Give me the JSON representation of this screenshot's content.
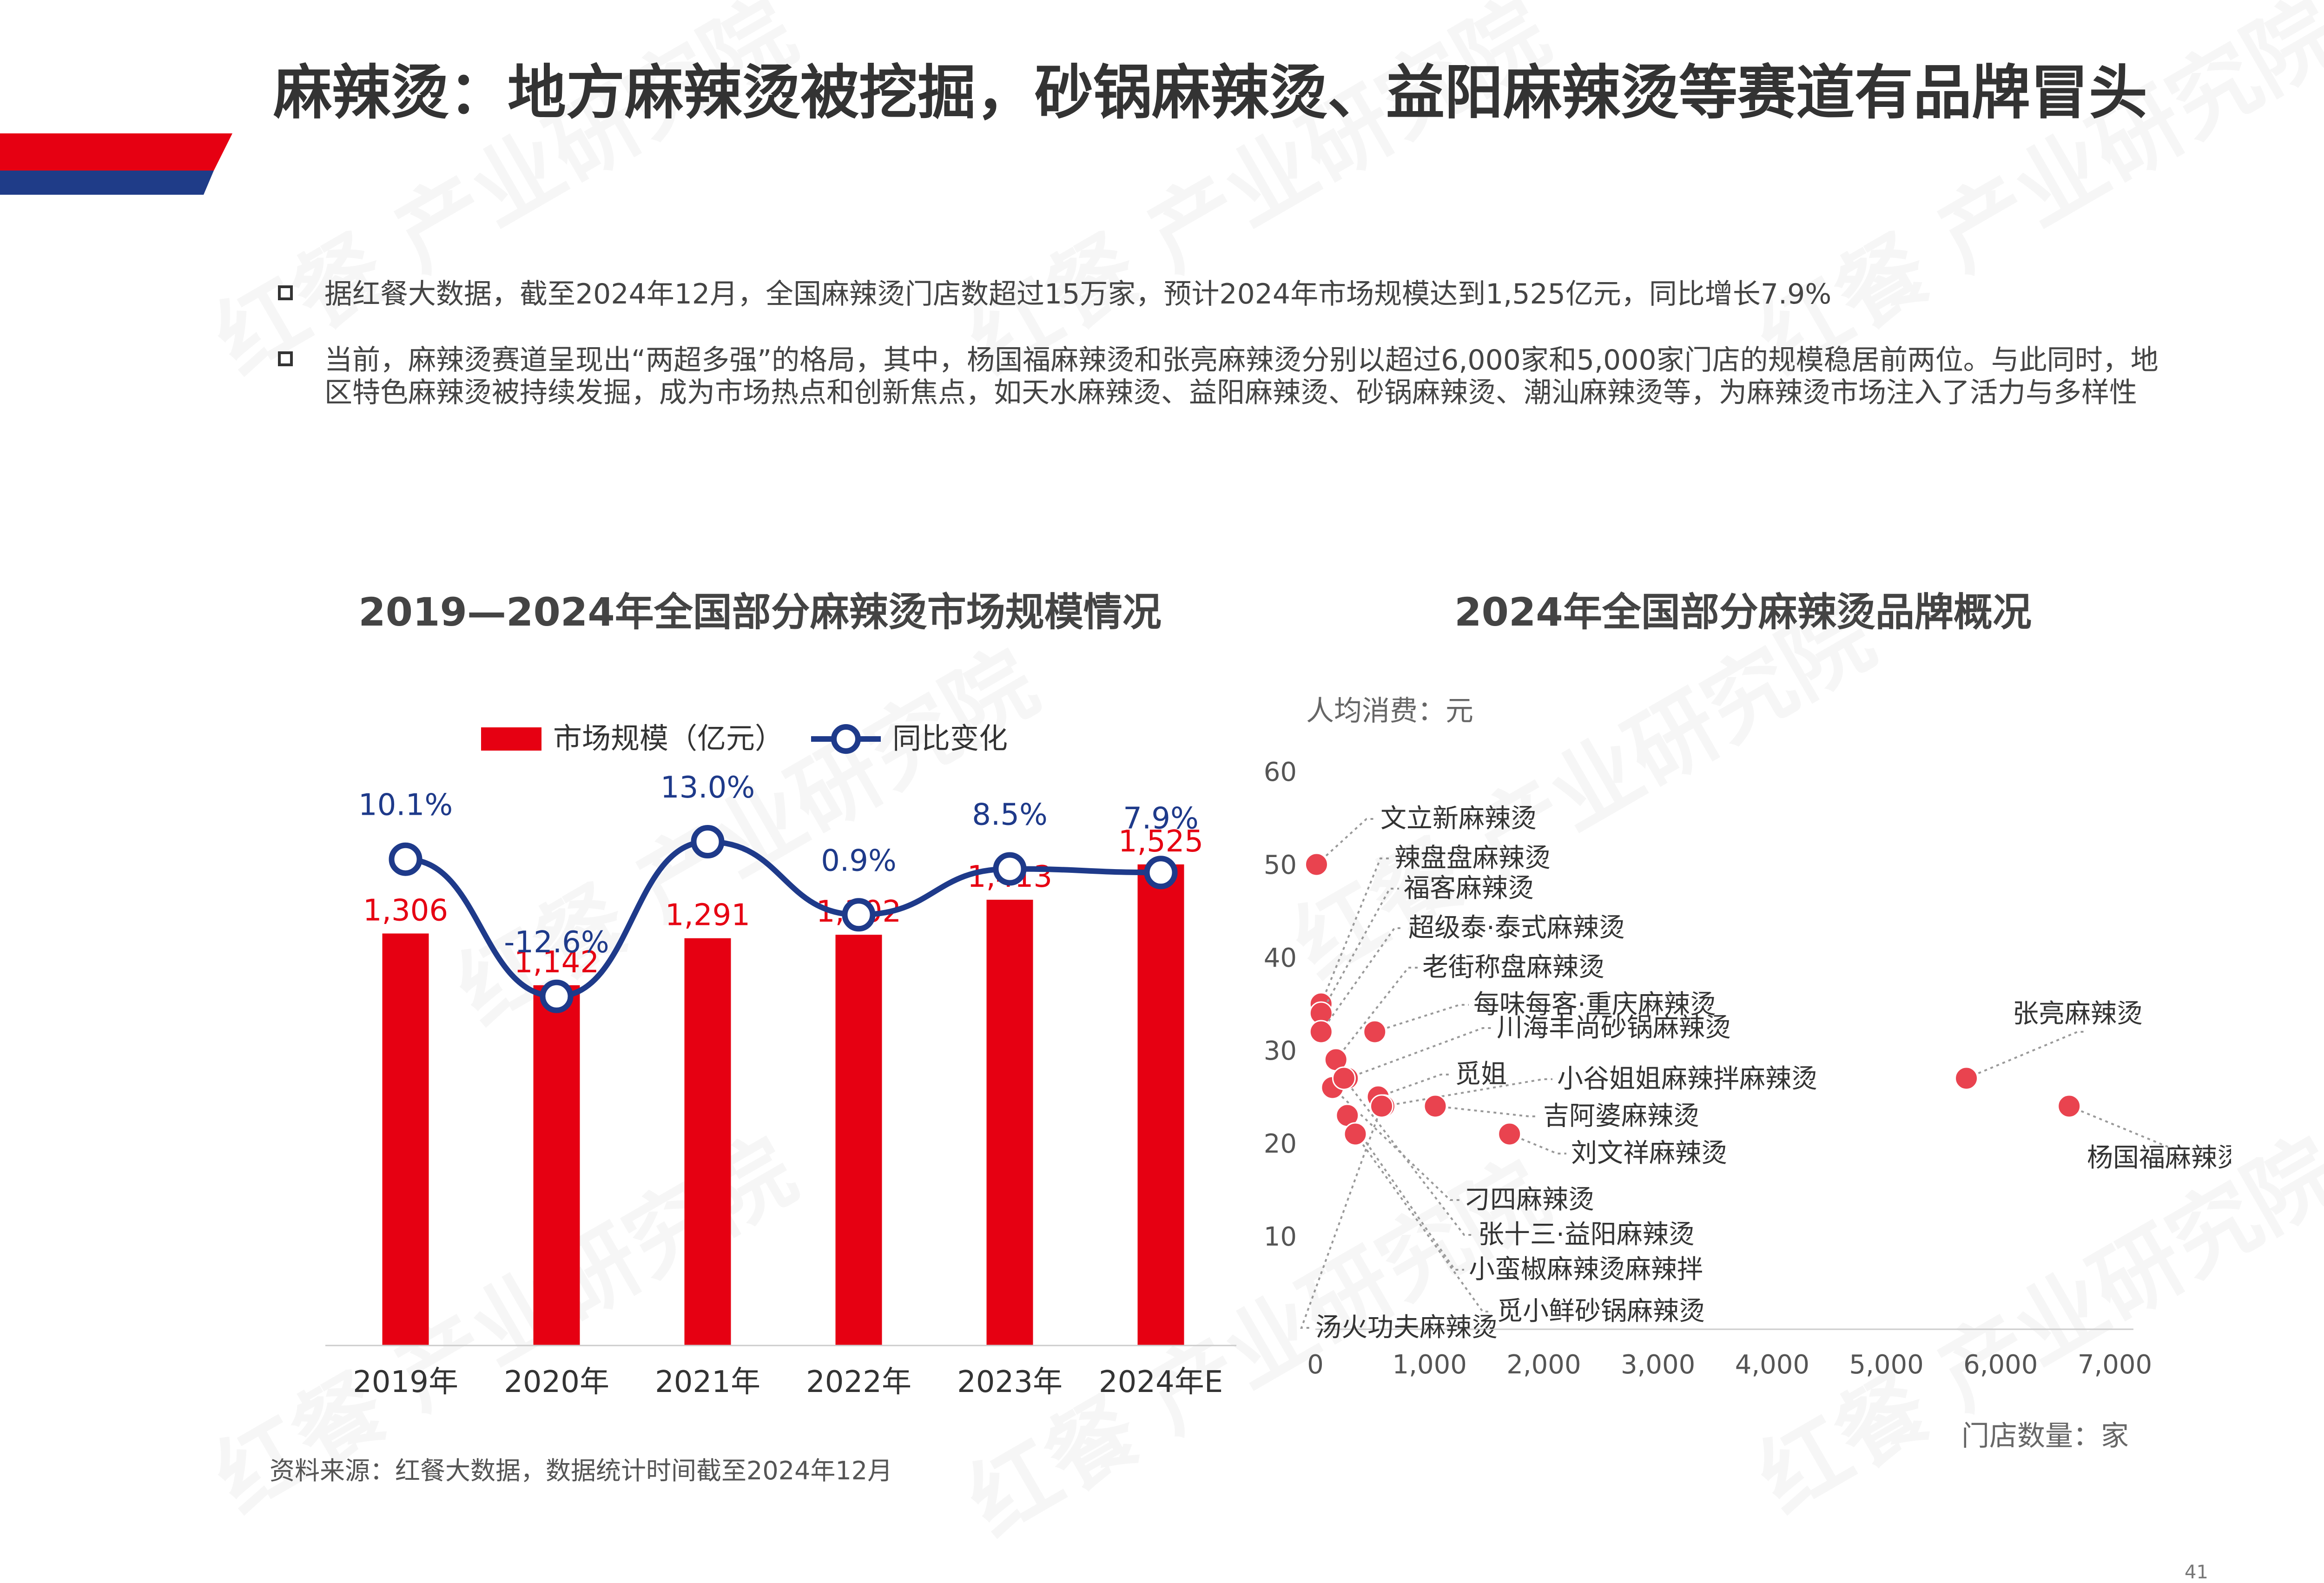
{
  "title": "麻辣烫：地方麻辣烫被挖掘，砂锅麻辣烫、益阳麻辣烫等赛道有品牌冒头",
  "bullets": [
    "据红餐大数据，截至2024年12月，全国麻辣烫门店数超过15万家，预计2024年市场规模达到1,525亿元，同比增长7.9%",
    "当前，麻辣烫赛道呈现出“两超多强”的格局，其中，杨国福麻辣烫和张亮麻辣烫分别以超过6,000家和5,000家门店的规模稳居前两位。与此同时，地区特色麻辣烫被持续发掘，成为市场热点和创新焦点，如天水麻辣烫、益阳麻辣烫、砂锅麻辣烫、潮汕麻辣烫等，为麻辣烫市场注入了活力与多样性"
  ],
  "watermark": "红餐 产业研究院",
  "source": "资料来源：红餐大数据，数据统计时间截至2024年12月",
  "page_number": "41",
  "colors": {
    "bar": "#E60012",
    "line": "#1E3A8A",
    "accent_red": "#E60012",
    "accent_blue": "#1F3C88"
  },
  "chart_data": [
    {
      "type": "bar",
      "title": "2019—2024年全国部分麻辣烫市场规模情况",
      "categories": [
        "2019年",
        "2020年",
        "2021年",
        "2022年",
        "2023年",
        "2024年E"
      ],
      "series": [
        {
          "name": "市场规模（亿元）",
          "type": "bar",
          "values": [
            1306,
            1142,
            1291,
            1302,
            1413,
            1525
          ],
          "labels": [
            "1,306",
            "1,142",
            "1,291",
            "1,302",
            "1,413",
            "1,525"
          ]
        },
        {
          "name": "同比变化",
          "type": "line",
          "values": [
            10.1,
            -12.6,
            13.0,
            0.9,
            8.5,
            7.9
          ],
          "labels": [
            "10.1%",
            "-12.6%",
            "13.0%",
            "0.9%",
            "8.5%",
            "7.9%"
          ]
        }
      ],
      "legend": "top-center",
      "grid": false
    },
    {
      "type": "scatter",
      "title": "2024年全国部分麻辣烫品牌概况",
      "xlabel": "门店数量：家",
      "ylabel": "人均消费：元",
      "xlim": [
        0,
        7000
      ],
      "ylim": [
        0,
        60
      ],
      "xticks": [
        "0",
        "1,000",
        "2,000",
        "3,000",
        "4,000",
        "5,000",
        "6,000",
        "7,000"
      ],
      "yticks": [
        "10",
        "20",
        "30",
        "40",
        "50",
        "60"
      ],
      "grid": false,
      "points": [
        {
          "name": "文立新麻辣烫",
          "x": 10,
          "y": 50
        },
        {
          "name": "辣盘盘麻辣烫",
          "x": 50,
          "y": 35
        },
        {
          "name": "福客麻辣烫",
          "x": 50,
          "y": 34
        },
        {
          "name": "超级泰·泰式麻辣烫",
          "x": 50,
          "y": 32
        },
        {
          "name": "老街称盘麻辣烫",
          "x": 180,
          "y": 29
        },
        {
          "name": "每味每客·重庆麻辣烫",
          "x": 520,
          "y": 32
        },
        {
          "name": "川海丰尚砂锅麻辣烫",
          "x": 280,
          "y": 27
        },
        {
          "name": "觅姐",
          "x": 550,
          "y": 25
        },
        {
          "name": "小谷姐姐麻辣拌麻辣烫",
          "x": 600,
          "y": 24
        },
        {
          "name": "吉阿婆麻辣烫",
          "x": 1050,
          "y": 24
        },
        {
          "name": "刘文祥麻辣烫",
          "x": 1700,
          "y": 21
        },
        {
          "name": "刁四麻辣烫",
          "x": 150,
          "y": 26
        },
        {
          "name": "张十三·益阳麻辣烫",
          "x": 250,
          "y": 27
        },
        {
          "name": "小蛮椒麻辣烫麻辣拌",
          "x": 280,
          "y": 23
        },
        {
          "name": "觅小鲜砂锅麻辣烫",
          "x": 350,
          "y": 21
        },
        {
          "name": "汤火功夫麻辣烫",
          "x": 580,
          "y": 24
        },
        {
          "name": "张亮麻辣烫",
          "x": 5700,
          "y": 27
        },
        {
          "name": "杨国福麻辣烫",
          "x": 6600,
          "y": 24
        }
      ]
    }
  ]
}
